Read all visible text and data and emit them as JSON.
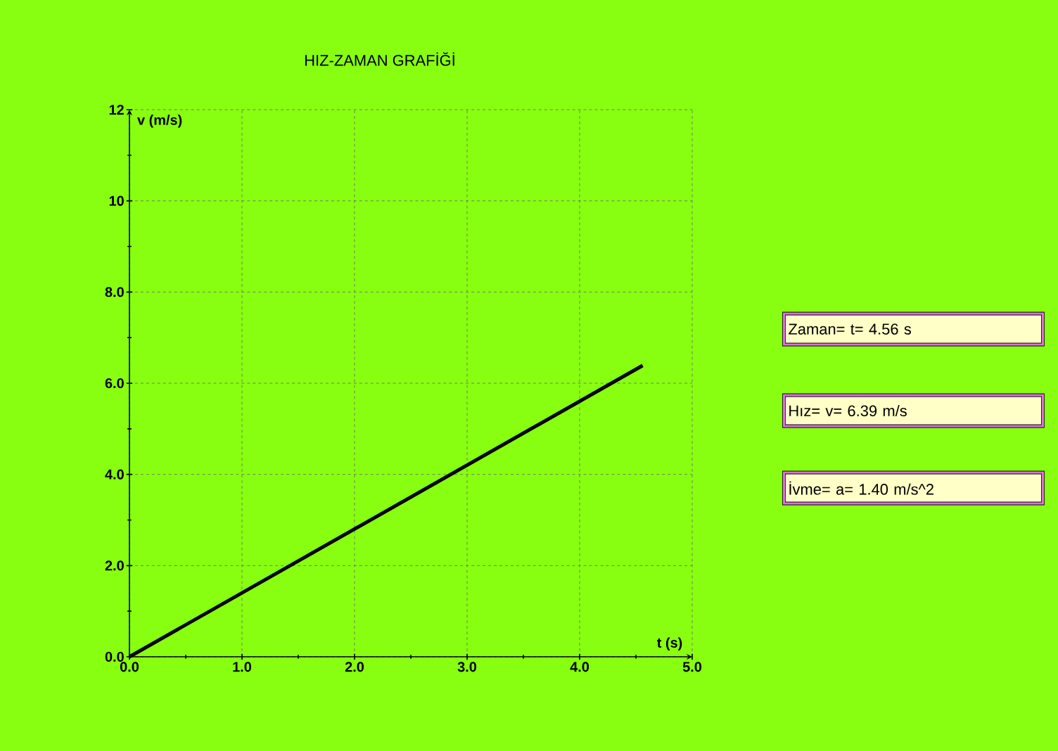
{
  "chart_data": {
    "type": "line",
    "title": "HIZ-ZAMAN GRAFİĞİ",
    "xlabel": "t (s)",
    "ylabel": "v (m/s)",
    "x": [
      0,
      4.56
    ],
    "series": [
      {
        "color": "#000000",
        "values": [
          0,
          6.39
        ]
      }
    ],
    "xlim": [
      0,
      5
    ],
    "ylim": [
      0,
      12
    ],
    "xticks": [
      {
        "value": 0,
        "label": "0.0"
      },
      {
        "value": 0.5,
        "label": null
      },
      {
        "value": 1,
        "label": "1.0"
      },
      {
        "value": 1.5,
        "label": null
      },
      {
        "value": 2,
        "label": "2.0"
      },
      {
        "value": 2.5,
        "label": null
      },
      {
        "value": 3,
        "label": "3.0"
      },
      {
        "value": 3.5,
        "label": null
      },
      {
        "value": 4,
        "label": "4.0"
      },
      {
        "value": 4.5,
        "label": null
      },
      {
        "value": 5,
        "label": "5.0"
      }
    ],
    "yticks": [
      {
        "value": 0,
        "label": "0.0"
      },
      {
        "value": 1,
        "label": null
      },
      {
        "value": 2,
        "label": "2.0"
      },
      {
        "value": 3,
        "label": null
      },
      {
        "value": 4,
        "label": "4.0"
      },
      {
        "value": 5,
        "label": null
      },
      {
        "value": 6,
        "label": "6.0"
      },
      {
        "value": 7,
        "label": null
      },
      {
        "value": 8,
        "label": "8.0"
      },
      {
        "value": 9,
        "label": null
      },
      10,
      {
        "value": 11,
        "label": null
      },
      12
    ],
    "grid": true,
    "annotations": [
      "Zaman= t= 4.56 s",
      "Hız= v=      6.39 m/s",
      "İvme= a=   1.40 m/s^2"
    ]
  }
}
